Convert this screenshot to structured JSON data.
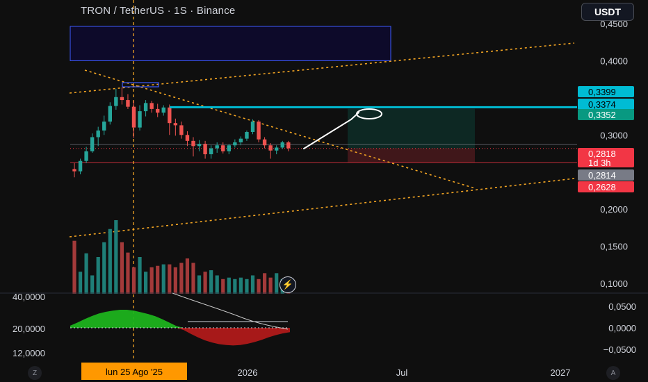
{
  "header": {
    "title": "TRON / TetherUS · 1S · Binance",
    "currency_button": "USDT"
  },
  "colors": {
    "background": "#0f0f0f",
    "up": "#26a69a",
    "down": "#ef5350",
    "accent_cyan": "#00bcd4",
    "dashed_line": "#f5a623",
    "zone_box": "#3d5afe"
  },
  "price_axis": {
    "ticks": [
      "0,4500",
      "0,4000",
      "0,3000",
      "0,2000",
      "0,1500",
      "0,1000"
    ],
    "tick_values": [
      0.45,
      0.4,
      0.3,
      0.2,
      0.15,
      0.1
    ],
    "labels": [
      {
        "text": "0,3399",
        "value": 0.3399,
        "color": "#00bcd4",
        "text_color": "#000000"
      },
      {
        "text": "0,3374",
        "value": 0.3374,
        "color": "#00bcd4",
        "text_color": "#000000"
      },
      {
        "text": "0,3352",
        "value": 0.3352,
        "color": "#089981",
        "text_color": "#ffffff"
      },
      {
        "text": "0,2818",
        "value": 0.2818,
        "color": "#f23645",
        "text_color": "#ffffff",
        "sub": "1d 3h"
      },
      {
        "text": "0,2814",
        "value": 0.2814,
        "color": "#787b86",
        "text_color": "#ffffff"
      },
      {
        "text": "0,2628",
        "value": 0.2628,
        "color": "#f23645",
        "text_color": "#ffffff"
      }
    ]
  },
  "indicator_axis": {
    "right_ticks": [
      "0,0500",
      "0,0000",
      "−0,0500"
    ],
    "right_values": [
      0.05,
      0.0,
      -0.05
    ],
    "left_ticks": [
      "40,0000",
      "20,0000",
      "12,0000"
    ]
  },
  "time_axis": {
    "ticks": [
      "2026",
      "Jul",
      "2027"
    ],
    "highlight": "lun 25 Ago '25"
  },
  "corner_buttons": {
    "left": "Z",
    "right": "A"
  },
  "chart_data": {
    "type": "candlestick",
    "symbol": "TRON / TetherUS",
    "interval": "1S",
    "exchange": "Binance",
    "candles": [
      {
        "o": 0.254,
        "h": 0.262,
        "l": 0.243,
        "c": 0.251
      },
      {
        "o": 0.251,
        "h": 0.268,
        "l": 0.247,
        "c": 0.265
      },
      {
        "o": 0.265,
        "h": 0.284,
        "l": 0.262,
        "c": 0.278
      },
      {
        "o": 0.278,
        "h": 0.302,
        "l": 0.276,
        "c": 0.297
      },
      {
        "o": 0.297,
        "h": 0.311,
        "l": 0.285,
        "c": 0.306
      },
      {
        "o": 0.306,
        "h": 0.326,
        "l": 0.3,
        "c": 0.318
      },
      {
        "o": 0.318,
        "h": 0.344,
        "l": 0.314,
        "c": 0.339
      },
      {
        "o": 0.339,
        "h": 0.362,
        "l": 0.334,
        "c": 0.351
      },
      {
        "o": 0.351,
        "h": 0.364,
        "l": 0.341,
        "c": 0.347
      },
      {
        "o": 0.347,
        "h": 0.355,
        "l": 0.335,
        "c": 0.338
      },
      {
        "o": 0.338,
        "h": 0.346,
        "l": 0.296,
        "c": 0.31
      },
      {
        "o": 0.31,
        "h": 0.34,
        "l": 0.306,
        "c": 0.332
      },
      {
        "o": 0.332,
        "h": 0.347,
        "l": 0.325,
        "c": 0.343
      },
      {
        "o": 0.343,
        "h": 0.346,
        "l": 0.33,
        "c": 0.335
      },
      {
        "o": 0.335,
        "h": 0.342,
        "l": 0.324,
        "c": 0.33
      },
      {
        "o": 0.33,
        "h": 0.34,
        "l": 0.326,
        "c": 0.337
      },
      {
        "o": 0.337,
        "h": 0.341,
        "l": 0.3,
        "c": 0.316
      },
      {
        "o": 0.316,
        "h": 0.322,
        "l": 0.299,
        "c": 0.313
      },
      {
        "o": 0.313,
        "h": 0.318,
        "l": 0.295,
        "c": 0.3
      },
      {
        "o": 0.3,
        "h": 0.305,
        "l": 0.285,
        "c": 0.292
      },
      {
        "o": 0.292,
        "h": 0.297,
        "l": 0.271,
        "c": 0.285
      },
      {
        "o": 0.285,
        "h": 0.293,
        "l": 0.278,
        "c": 0.288
      },
      {
        "o": 0.288,
        "h": 0.292,
        "l": 0.268,
        "c": 0.274
      },
      {
        "o": 0.274,
        "h": 0.286,
        "l": 0.268,
        "c": 0.282
      },
      {
        "o": 0.282,
        "h": 0.29,
        "l": 0.276,
        "c": 0.286
      },
      {
        "o": 0.286,
        "h": 0.29,
        "l": 0.275,
        "c": 0.278
      },
      {
        "o": 0.278,
        "h": 0.288,
        "l": 0.274,
        "c": 0.286
      },
      {
        "o": 0.286,
        "h": 0.294,
        "l": 0.283,
        "c": 0.29
      },
      {
        "o": 0.29,
        "h": 0.298,
        "l": 0.286,
        "c": 0.295
      },
      {
        "o": 0.295,
        "h": 0.306,
        "l": 0.292,
        "c": 0.304
      },
      {
        "o": 0.304,
        "h": 0.321,
        "l": 0.301,
        "c": 0.318
      },
      {
        "o": 0.318,
        "h": 0.32,
        "l": 0.29,
        "c": 0.294
      },
      {
        "o": 0.294,
        "h": 0.297,
        "l": 0.282,
        "c": 0.286
      },
      {
        "o": 0.286,
        "h": 0.289,
        "l": 0.268,
        "c": 0.279
      },
      {
        "o": 0.279,
        "h": 0.286,
        "l": 0.274,
        "c": 0.283
      },
      {
        "o": 0.283,
        "h": 0.292,
        "l": 0.281,
        "c": 0.29
      },
      {
        "o": 0.29,
        "h": 0.292,
        "l": 0.278,
        "c": 0.282
      }
    ],
    "volume": [
      0.72,
      0.3,
      0.55,
      0.25,
      0.5,
      0.7,
      0.88,
      1.0,
      0.7,
      0.56,
      0.36,
      0.5,
      0.3,
      0.36,
      0.38,
      0.4,
      0.4,
      0.36,
      0.42,
      0.48,
      0.42,
      0.25,
      0.3,
      0.32,
      0.25,
      0.2,
      0.22,
      0.2,
      0.22,
      0.2,
      0.25,
      0.2,
      0.28,
      0.22,
      0.28,
      0.2,
      0.18
    ],
    "oscillator": [
      0.005,
      0.012,
      0.02,
      0.027,
      0.033,
      0.037,
      0.04,
      0.042,
      0.042,
      0.04,
      0.036,
      0.032,
      0.027,
      0.02,
      0.012,
      0.004,
      -0.005,
      -0.014,
      -0.022,
      -0.029,
      -0.034,
      -0.038,
      -0.04,
      -0.041,
      -0.04,
      -0.037,
      -0.033,
      -0.028,
      -0.022,
      -0.017,
      -0.013,
      -0.01
    ],
    "oscillator_ylim": [
      -0.06,
      0.06
    ],
    "ylim": [
      0.09,
      0.46
    ],
    "highlighted_date": "lun 25 Ago '25",
    "last_price": 0.2818,
    "countdown": "1d 3h",
    "long_position": {
      "entry": 0.2818,
      "target": 0.3352,
      "stop": 0.2628
    },
    "resistance_line": 0.3374,
    "supply_zone": [
      0.4,
      0.45
    ],
    "grid": false
  }
}
